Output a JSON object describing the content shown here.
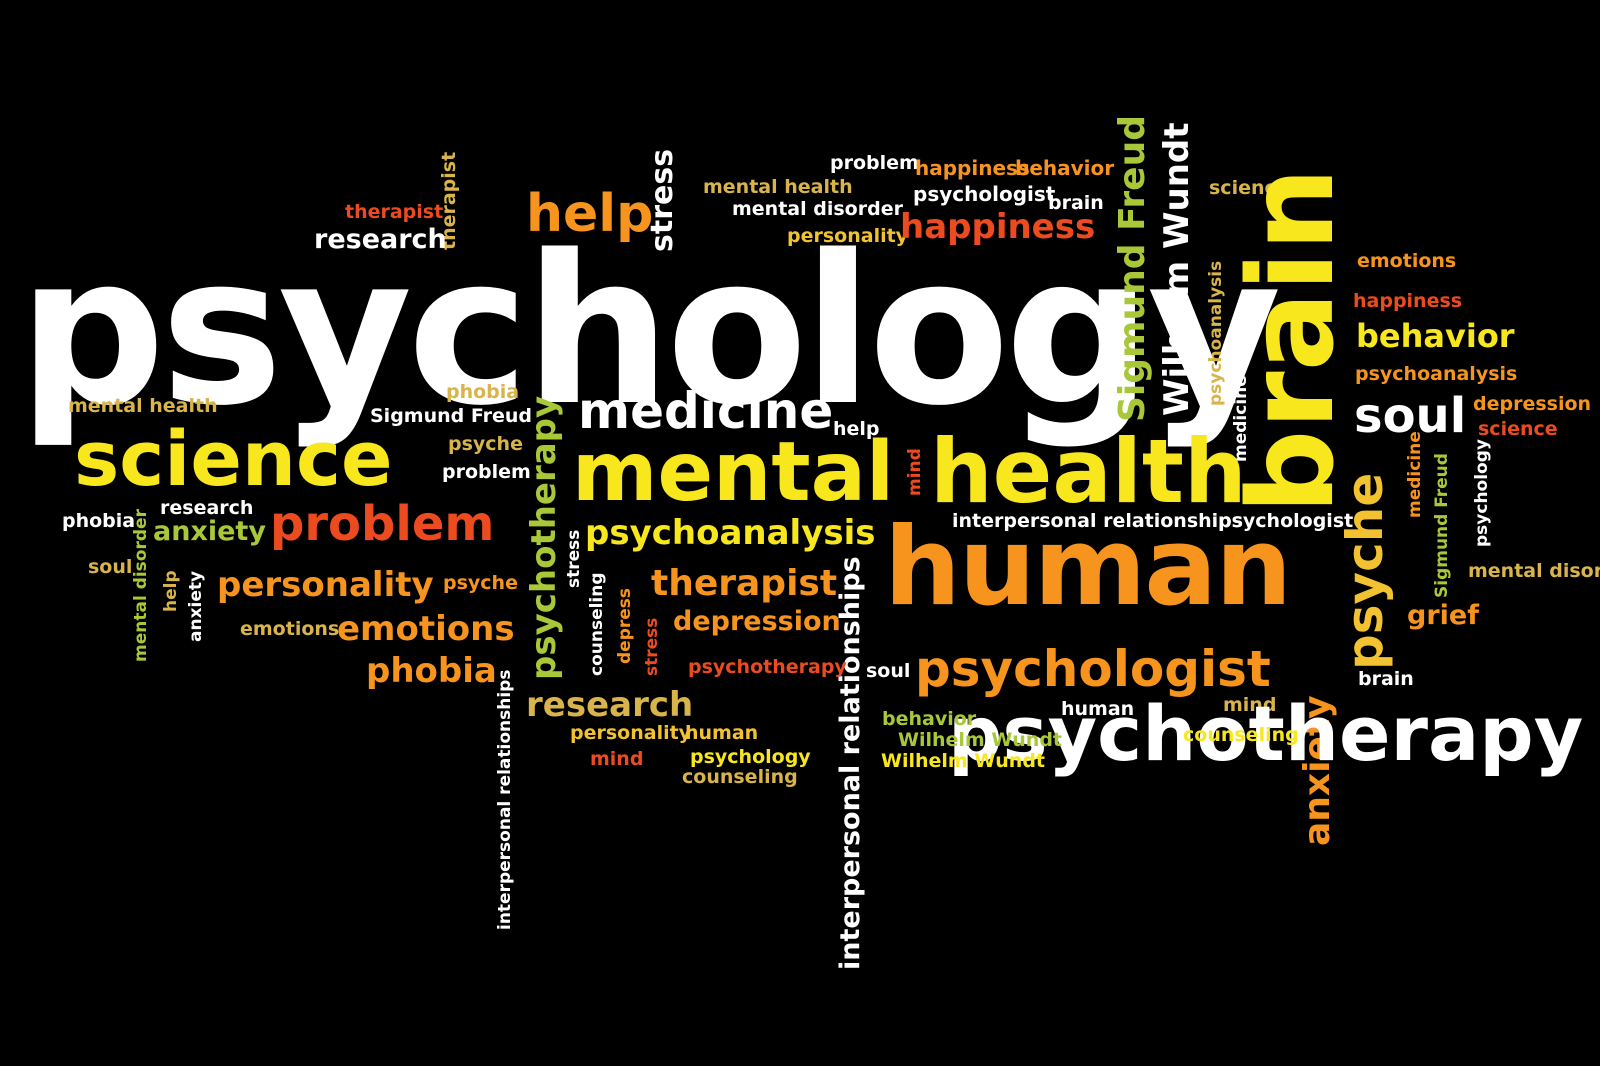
{
  "colors": {
    "background": "#000000",
    "white": "#ffffff",
    "yellow": "#f8e71c",
    "gold": "#f2c230",
    "orange": "#f7941d",
    "red": "#ec4b1f",
    "lime": "#a8c83a",
    "khaki": "#d9b44a"
  },
  "words": [
    "psychology",
    "help",
    "stress",
    "therapist",
    "therapist",
    "research",
    "problem",
    "happiness",
    "behavior",
    "mental health",
    "psychologist",
    "brain",
    "mental disorder",
    "personality",
    "happiness",
    "Sigmund Freud",
    "Wilhelm Wundt",
    "science",
    "brain",
    "emotions",
    "happiness",
    "behavior",
    "psychoanalysis",
    "depression",
    "science",
    "soul",
    "psychoanalysis",
    "grief",
    "medicine",
    "psychology",
    "medicine",
    "Sigmund Freud",
    "mental health",
    "phobia",
    "Sigmund Freud",
    "psyche",
    "problem",
    "medicine",
    "help",
    "science",
    "mental",
    "health",
    "mind",
    "psychotherapy",
    "psyche",
    "research",
    "phobia",
    "anxiety",
    "problem",
    "interpersonal relationships",
    "psychologist",
    "psychoanalysis",
    "human",
    "soul",
    "mental disorder",
    "help",
    "anxiety",
    "personality",
    "psyche",
    "stress",
    "counseling",
    "depress",
    "stress",
    "therapist",
    "depression",
    "emotions",
    "emotions",
    "phobia",
    "interpersonal relationships",
    "interpersonal relationships",
    "psychotherapy",
    "soul",
    "psychologist",
    "grief",
    "mental disorder",
    "brain",
    "research",
    "anxiety",
    "human",
    "mind",
    "psychotherapy",
    "personality",
    "human",
    "behavior",
    "Wilhelm Wundt",
    "Wilhelm Wundt",
    "mind",
    "psychology",
    "counseling",
    "counseling"
  ]
}
